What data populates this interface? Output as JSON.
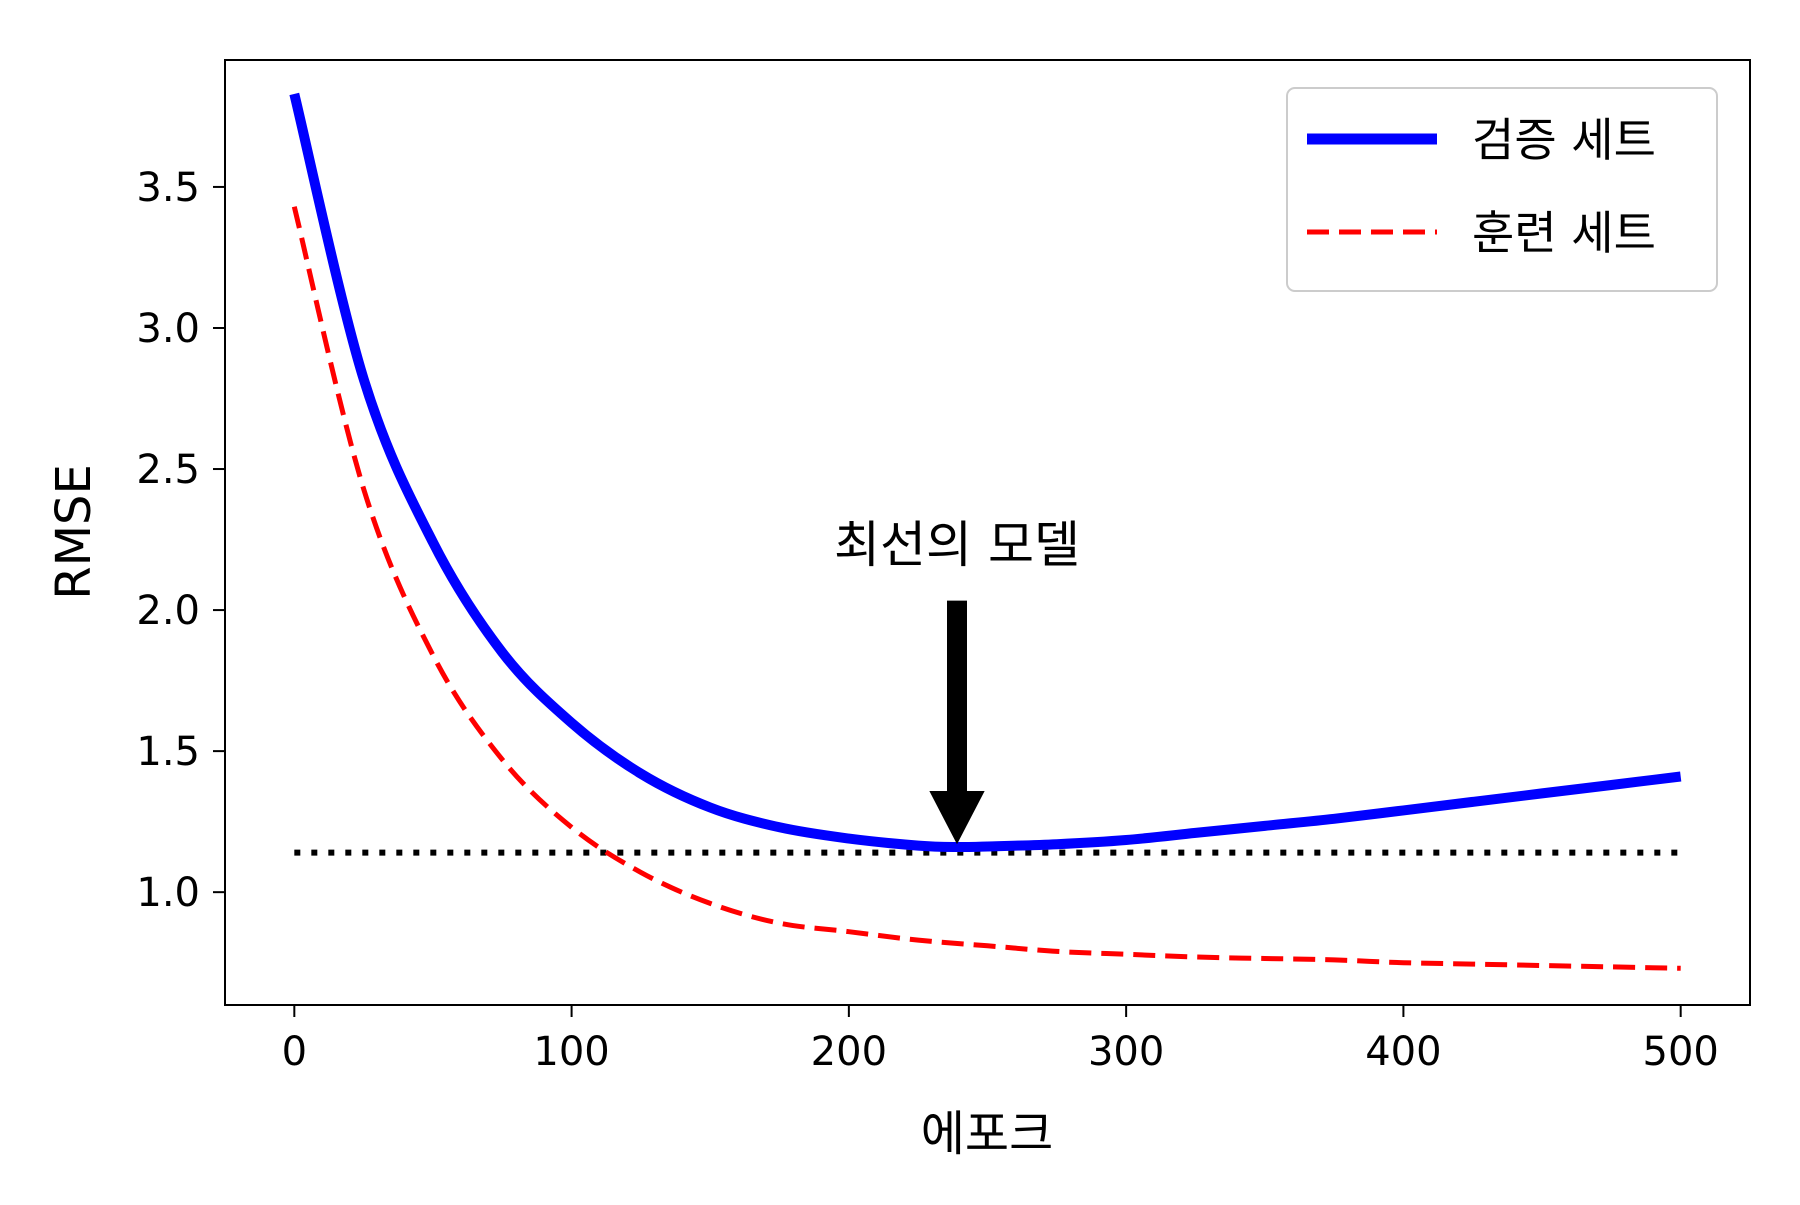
{
  "chart_data": {
    "type": "line",
    "xlabel": "에포크",
    "ylabel": "RMSE",
    "xlim": [
      -25,
      525
    ],
    "ylim": [
      0.6,
      3.95
    ],
    "xticks": [
      0,
      100,
      200,
      300,
      400,
      500
    ],
    "xtick_labels": [
      "0",
      "100",
      "200",
      "300",
      "400",
      "500"
    ],
    "yticks": [
      1.0,
      1.5,
      2.0,
      2.5,
      3.0,
      3.5
    ],
    "ytick_labels": [
      "1.0",
      "1.5",
      "2.0",
      "2.5",
      "3.0",
      "3.5"
    ],
    "grid": false,
    "legend_position": "top-right",
    "series": [
      {
        "name": "검증 세트",
        "style": "solid",
        "color": "#0000ff",
        "x": [
          0,
          25,
          50,
          75,
          100,
          125,
          150,
          175,
          200,
          225,
          239,
          250,
          275,
          300,
          325,
          350,
          375,
          400,
          425,
          450,
          475,
          500
        ],
        "y": [
          3.83,
          2.82,
          2.24,
          1.85,
          1.6,
          1.42,
          1.3,
          1.23,
          1.19,
          1.165,
          1.16,
          1.162,
          1.17,
          1.185,
          1.21,
          1.235,
          1.26,
          1.29,
          1.32,
          1.35,
          1.38,
          1.41
        ]
      },
      {
        "name": "훈련 세트",
        "style": "dashed",
        "color": "#ff0000",
        "x": [
          0,
          25,
          50,
          75,
          100,
          125,
          150,
          175,
          200,
          225,
          250,
          275,
          300,
          325,
          350,
          375,
          400,
          425,
          450,
          475,
          500
        ],
        "y": [
          3.43,
          2.43,
          1.84,
          1.47,
          1.23,
          1.07,
          0.96,
          0.89,
          0.86,
          0.83,
          0.81,
          0.79,
          0.78,
          0.77,
          0.765,
          0.76,
          0.75,
          0.745,
          0.74,
          0.735,
          0.73
        ]
      }
    ],
    "reference_line": {
      "style": "dotted",
      "color": "#000000",
      "y": 1.14,
      "x_range": [
        0,
        500
      ]
    },
    "annotation": {
      "text": "최선의 모델",
      "text_x": 239,
      "text_y": 2.17,
      "arrow_from_y": 2.03,
      "point_x": 239,
      "point_y": 1.16
    }
  }
}
